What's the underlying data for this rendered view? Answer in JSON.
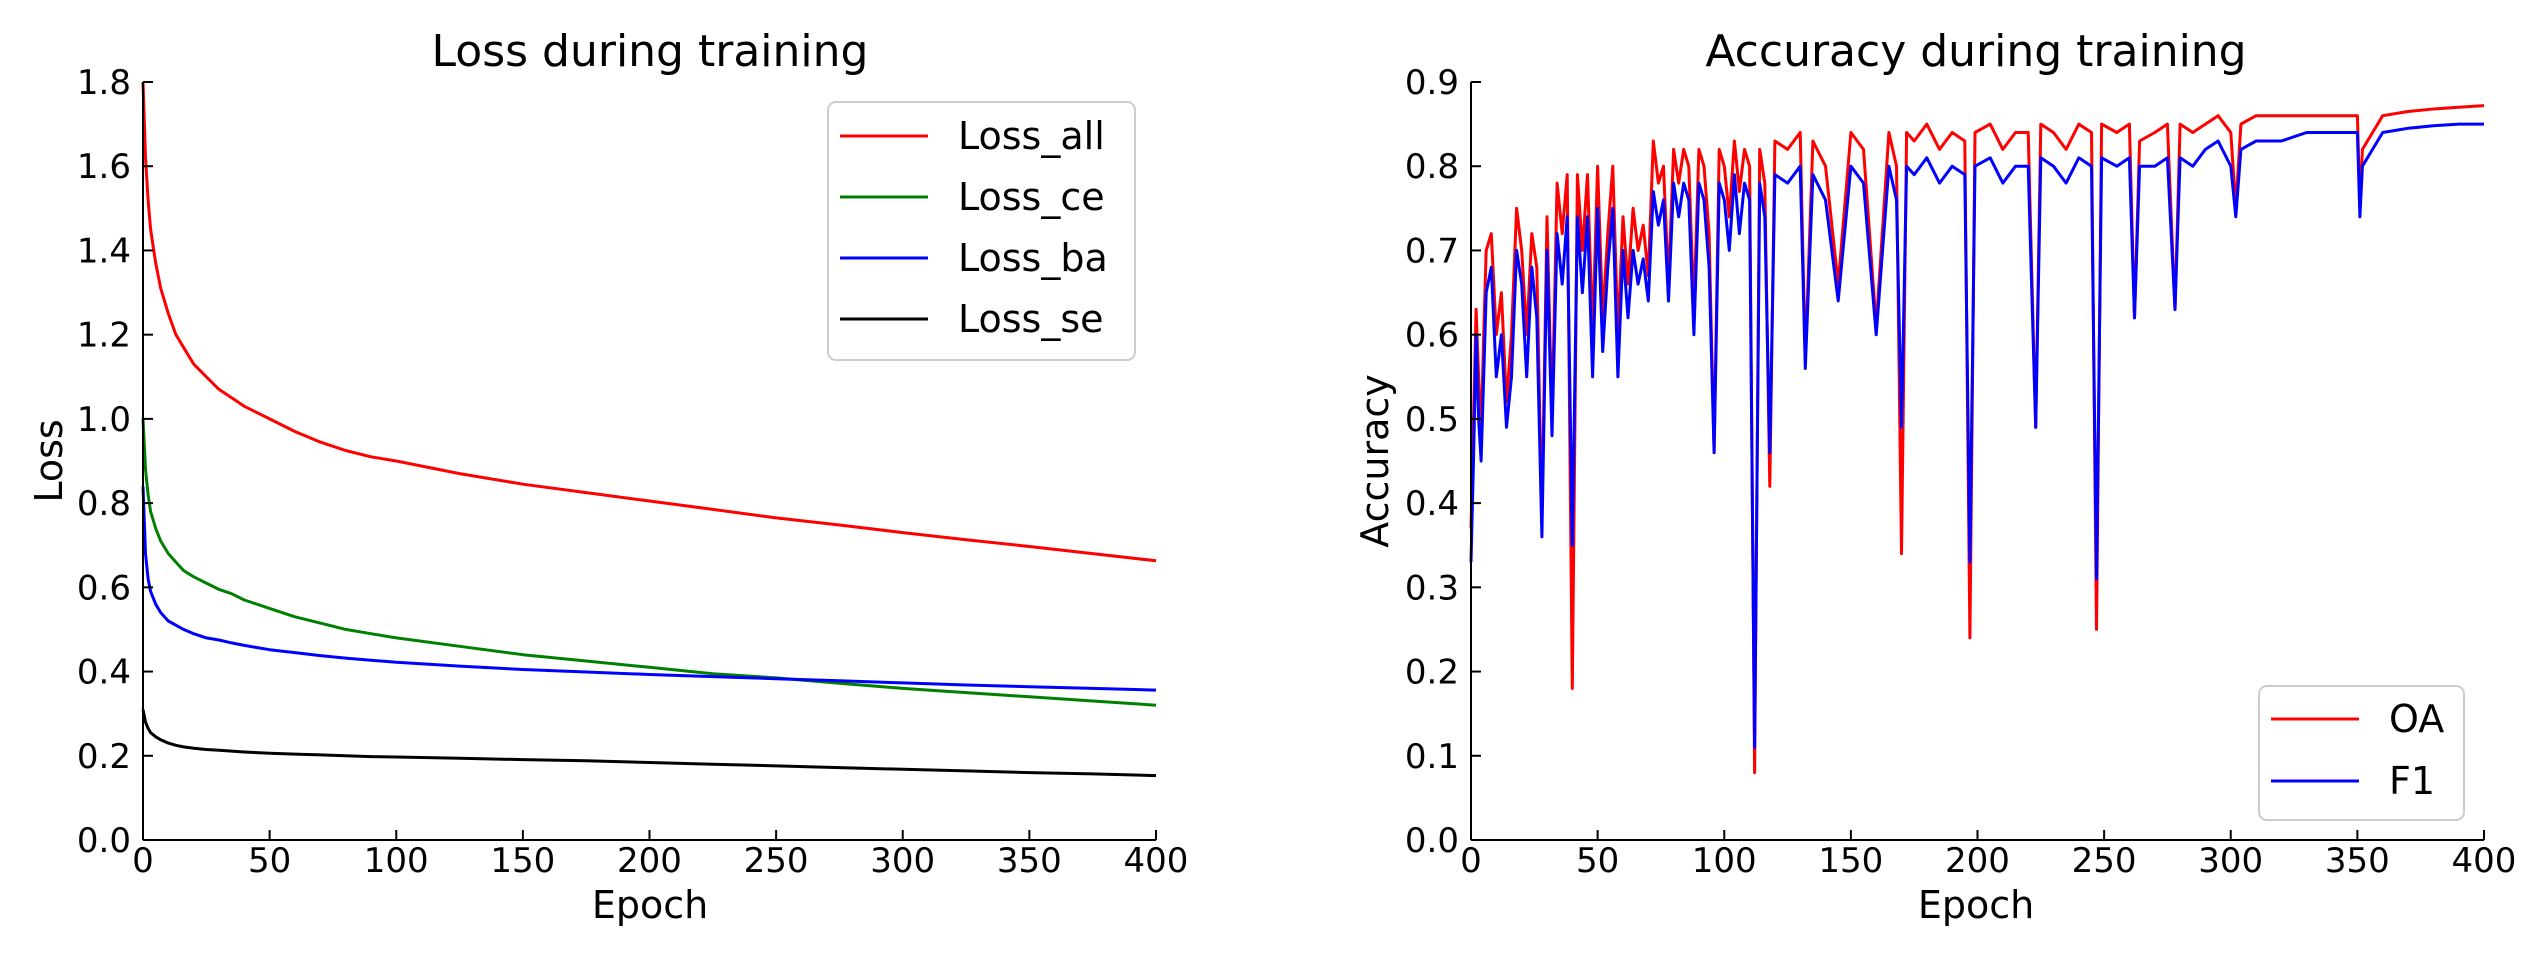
{
  "figure": {
    "background": "#ffffff"
  },
  "chart_data": [
    {
      "type": "line",
      "title": "Loss during training",
      "xlabel": "Epoch",
      "ylabel": "Loss",
      "xlim": [
        0,
        400
      ],
      "ylim": [
        0.0,
        1.8
      ],
      "xticks": [
        0,
        50,
        100,
        150,
        200,
        250,
        300,
        350,
        400
      ],
      "yticks": [
        0.0,
        0.2,
        0.4,
        0.6,
        0.8,
        1.0,
        1.2,
        1.4,
        1.6,
        1.8
      ],
      "ytick_labels": [
        "0.0",
        "0.2",
        "0.4",
        "0.6",
        "0.8",
        "1.0",
        "1.2",
        "1.4",
        "1.6",
        "1.8"
      ],
      "grid": false,
      "legend": {
        "position": "top-right",
        "entries": [
          "Loss_all",
          "Loss_ce",
          "Loss_ba",
          "Loss_se"
        ]
      },
      "series": [
        {
          "name": "Loss_all",
          "color": "#ff0000",
          "x": [
            0,
            1,
            2,
            3,
            5,
            7,
            10,
            13,
            16,
            20,
            25,
            30,
            35,
            40,
            50,
            60,
            70,
            80,
            90,
            100,
            125,
            150,
            175,
            200,
            225,
            250,
            275,
            300,
            325,
            350,
            375,
            400
          ],
          "y": [
            1.8,
            1.62,
            1.52,
            1.45,
            1.37,
            1.31,
            1.25,
            1.2,
            1.17,
            1.13,
            1.1,
            1.07,
            1.05,
            1.03,
            1.0,
            0.97,
            0.945,
            0.925,
            0.91,
            0.9,
            0.87,
            0.845,
            0.825,
            0.805,
            0.785,
            0.765,
            0.748,
            0.73,
            0.713,
            0.697,
            0.68,
            0.663
          ]
        },
        {
          "name": "Loss_ce",
          "color": "#008000",
          "x": [
            0,
            1,
            2,
            3,
            5,
            7,
            10,
            13,
            16,
            20,
            25,
            30,
            35,
            40,
            50,
            60,
            70,
            80,
            90,
            100,
            125,
            150,
            175,
            200,
            225,
            250,
            275,
            300,
            325,
            350,
            375,
            400
          ],
          "y": [
            1.0,
            0.88,
            0.82,
            0.78,
            0.74,
            0.71,
            0.68,
            0.66,
            0.64,
            0.625,
            0.61,
            0.595,
            0.585,
            0.57,
            0.55,
            0.53,
            0.515,
            0.5,
            0.49,
            0.48,
            0.46,
            0.44,
            0.425,
            0.41,
            0.395,
            0.385,
            0.372,
            0.36,
            0.35,
            0.34,
            0.33,
            0.32
          ]
        },
        {
          "name": "Loss_ba",
          "color": "#0000ff",
          "x": [
            0,
            1,
            2,
            3,
            5,
            7,
            10,
            13,
            16,
            20,
            25,
            30,
            35,
            40,
            50,
            60,
            70,
            80,
            90,
            100,
            125,
            150,
            175,
            200,
            225,
            250,
            275,
            300,
            325,
            350,
            375,
            400
          ],
          "y": [
            0.84,
            0.68,
            0.62,
            0.59,
            0.56,
            0.54,
            0.52,
            0.51,
            0.5,
            0.49,
            0.48,
            0.475,
            0.468,
            0.462,
            0.452,
            0.445,
            0.438,
            0.432,
            0.427,
            0.422,
            0.413,
            0.405,
            0.399,
            0.393,
            0.388,
            0.383,
            0.378,
            0.373,
            0.368,
            0.364,
            0.36,
            0.356
          ]
        },
        {
          "name": "Loss_se",
          "color": "#000000",
          "x": [
            0,
            1,
            2,
            3,
            5,
            7,
            10,
            13,
            16,
            20,
            25,
            30,
            35,
            40,
            50,
            60,
            70,
            80,
            90,
            100,
            125,
            150,
            175,
            200,
            225,
            250,
            275,
            300,
            325,
            350,
            375,
            400
          ],
          "y": [
            0.31,
            0.28,
            0.265,
            0.255,
            0.245,
            0.238,
            0.23,
            0.225,
            0.221,
            0.218,
            0.215,
            0.213,
            0.211,
            0.209,
            0.206,
            0.204,
            0.202,
            0.2,
            0.198,
            0.197,
            0.194,
            0.191,
            0.188,
            0.184,
            0.18,
            0.176,
            0.172,
            0.168,
            0.164,
            0.16,
            0.157,
            0.153
          ]
        }
      ]
    },
    {
      "type": "line",
      "title": "Accuracy during training",
      "xlabel": "Epoch",
      "ylabel": "Accuracy",
      "xlim": [
        0,
        400
      ],
      "ylim": [
        0.0,
        0.9
      ],
      "xticks": [
        0,
        50,
        100,
        150,
        200,
        250,
        300,
        350,
        400
      ],
      "yticks": [
        0.0,
        0.1,
        0.2,
        0.3,
        0.4,
        0.5,
        0.6,
        0.7,
        0.8,
        0.9
      ],
      "ytick_labels": [
        "0.0",
        "0.1",
        "0.2",
        "0.3",
        "0.4",
        "0.5",
        "0.6",
        "0.7",
        "0.8",
        "0.9"
      ],
      "grid": false,
      "legend": {
        "position": "bottom-right",
        "entries": [
          "OA",
          "F1"
        ]
      },
      "series": [
        {
          "name": "OA",
          "color": "#ff0000",
          "x": [
            0,
            1,
            2,
            3,
            4,
            5,
            6,
            8,
            10,
            12,
            14,
            16,
            18,
            20,
            22,
            24,
            26,
            28,
            30,
            32,
            34,
            36,
            38,
            40,
            42,
            44,
            46,
            48,
            50,
            52,
            54,
            56,
            58,
            60,
            62,
            64,
            66,
            68,
            70,
            72,
            74,
            76,
            78,
            80,
            82,
            84,
            86,
            88,
            90,
            92,
            94,
            96,
            98,
            100,
            102,
            104,
            106,
            108,
            110,
            112,
            114,
            116,
            118,
            120,
            125,
            130,
            132,
            135,
            140,
            145,
            150,
            155,
            160,
            165,
            168,
            170,
            172,
            175,
            180,
            185,
            190,
            195,
            197,
            199,
            205,
            210,
            215,
            220,
            223,
            225,
            230,
            235,
            240,
            245,
            247,
            249,
            255,
            260,
            262,
            264,
            270,
            275,
            278,
            280,
            285,
            290,
            295,
            300,
            302,
            304,
            310,
            320,
            330,
            340,
            350,
            351,
            352,
            360,
            370,
            380,
            390,
            400
          ],
          "y": [
            0.37,
            0.5,
            0.63,
            0.55,
            0.48,
            0.6,
            0.7,
            0.72,
            0.6,
            0.65,
            0.52,
            0.6,
            0.75,
            0.7,
            0.6,
            0.72,
            0.68,
            0.38,
            0.74,
            0.5,
            0.78,
            0.72,
            0.79,
            0.18,
            0.79,
            0.7,
            0.79,
            0.6,
            0.8,
            0.62,
            0.72,
            0.8,
            0.6,
            0.74,
            0.66,
            0.75,
            0.7,
            0.73,
            0.67,
            0.83,
            0.78,
            0.8,
            0.66,
            0.82,
            0.78,
            0.82,
            0.8,
            0.63,
            0.82,
            0.8,
            0.72,
            0.46,
            0.82,
            0.8,
            0.74,
            0.83,
            0.77,
            0.82,
            0.8,
            0.08,
            0.82,
            0.78,
            0.42,
            0.83,
            0.82,
            0.84,
            0.57,
            0.83,
            0.8,
            0.66,
            0.84,
            0.82,
            0.61,
            0.84,
            0.8,
            0.34,
            0.84,
            0.83,
            0.85,
            0.82,
            0.84,
            0.83,
            0.24,
            0.84,
            0.85,
            0.82,
            0.84,
            0.84,
            0.49,
            0.85,
            0.84,
            0.82,
            0.85,
            0.84,
            0.25,
            0.85,
            0.84,
            0.85,
            0.62,
            0.83,
            0.84,
            0.85,
            0.63,
            0.85,
            0.84,
            0.85,
            0.86,
            0.84,
            0.75,
            0.85,
            0.86,
            0.86,
            0.86,
            0.86,
            0.86,
            0.75,
            0.82,
            0.86,
            0.865,
            0.868,
            0.87,
            0.872
          ]
        },
        {
          "name": "F1",
          "color": "#0000ff",
          "x": [
            0,
            1,
            2,
            3,
            4,
            5,
            6,
            8,
            10,
            12,
            14,
            16,
            18,
            20,
            22,
            24,
            26,
            28,
            30,
            32,
            34,
            36,
            38,
            40,
            42,
            44,
            46,
            48,
            50,
            52,
            54,
            56,
            58,
            60,
            62,
            64,
            66,
            68,
            70,
            72,
            74,
            76,
            78,
            80,
            82,
            84,
            86,
            88,
            90,
            92,
            94,
            96,
            98,
            100,
            102,
            104,
            106,
            108,
            110,
            112,
            114,
            116,
            118,
            120,
            125,
            130,
            132,
            135,
            140,
            145,
            150,
            155,
            160,
            165,
            168,
            170,
            172,
            175,
            180,
            185,
            190,
            195,
            197,
            199,
            205,
            210,
            215,
            220,
            223,
            225,
            230,
            235,
            240,
            245,
            247,
            249,
            255,
            260,
            262,
            264,
            270,
            275,
            278,
            280,
            285,
            290,
            295,
            300,
            302,
            304,
            310,
            320,
            330,
            340,
            350,
            351,
            352,
            360,
            370,
            380,
            390,
            400
          ],
          "y": [
            0.33,
            0.45,
            0.6,
            0.5,
            0.45,
            0.55,
            0.65,
            0.68,
            0.55,
            0.6,
            0.49,
            0.55,
            0.7,
            0.66,
            0.55,
            0.68,
            0.62,
            0.36,
            0.7,
            0.48,
            0.72,
            0.66,
            0.74,
            0.35,
            0.74,
            0.65,
            0.74,
            0.55,
            0.75,
            0.58,
            0.68,
            0.75,
            0.55,
            0.7,
            0.62,
            0.7,
            0.66,
            0.69,
            0.64,
            0.77,
            0.73,
            0.76,
            0.64,
            0.78,
            0.74,
            0.78,
            0.76,
            0.6,
            0.78,
            0.76,
            0.68,
            0.46,
            0.78,
            0.76,
            0.7,
            0.79,
            0.72,
            0.78,
            0.76,
            0.11,
            0.78,
            0.74,
            0.46,
            0.79,
            0.78,
            0.8,
            0.56,
            0.79,
            0.76,
            0.64,
            0.8,
            0.78,
            0.6,
            0.8,
            0.76,
            0.49,
            0.8,
            0.79,
            0.81,
            0.78,
            0.8,
            0.79,
            0.33,
            0.8,
            0.81,
            0.78,
            0.8,
            0.8,
            0.49,
            0.81,
            0.8,
            0.78,
            0.81,
            0.8,
            0.31,
            0.81,
            0.8,
            0.81,
            0.62,
            0.8,
            0.8,
            0.81,
            0.63,
            0.81,
            0.8,
            0.82,
            0.83,
            0.8,
            0.74,
            0.82,
            0.83,
            0.83,
            0.84,
            0.84,
            0.84,
            0.74,
            0.8,
            0.84,
            0.845,
            0.848,
            0.85,
            0.85
          ]
        }
      ]
    }
  ]
}
